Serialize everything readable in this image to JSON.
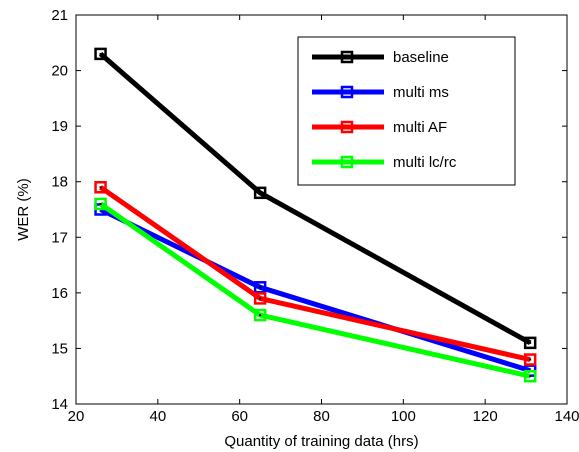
{
  "chart_data": {
    "type": "line",
    "title": "",
    "xlabel": "Quantity of training data (hrs)",
    "ylabel": "WER (%)",
    "xlim": [
      20,
      140
    ],
    "ylim": [
      14,
      21
    ],
    "xticks": [
      20,
      40,
      60,
      80,
      100,
      120,
      140
    ],
    "yticks": [
      14,
      15,
      16,
      17,
      18,
      19,
      20,
      21
    ],
    "x": [
      26,
      65,
      131
    ],
    "grid": false,
    "legend_position": "top-right",
    "series": [
      {
        "name": "baseline",
        "color": "#000000",
        "values": [
          20.3,
          17.8,
          15.1
        ]
      },
      {
        "name": "multi ms",
        "color": "#0000ff",
        "values": [
          17.5,
          16.1,
          14.6
        ]
      },
      {
        "name": "multi AF",
        "color": "#ff0000",
        "values": [
          17.9,
          15.9,
          14.8
        ]
      },
      {
        "name": "multi lc/rc",
        "color": "#00ff00",
        "values": [
          17.6,
          15.6,
          14.5
        ]
      }
    ]
  }
}
